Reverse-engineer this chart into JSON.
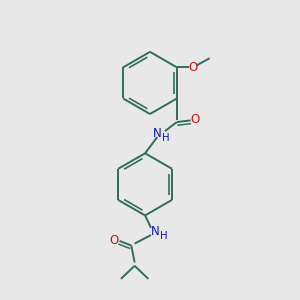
{
  "background_color": "#e8e8e8",
  "bond_color": "#2d6e5b",
  "N_color": "#1010cc",
  "O_color": "#cc1010",
  "figsize": [
    3.0,
    3.0
  ],
  "dpi": 100,
  "lw": 1.4,
  "lw_inner": 1.1,
  "font_size": 8.5,
  "xlim": [
    0,
    10
  ],
  "ylim": [
    0,
    10
  ]
}
